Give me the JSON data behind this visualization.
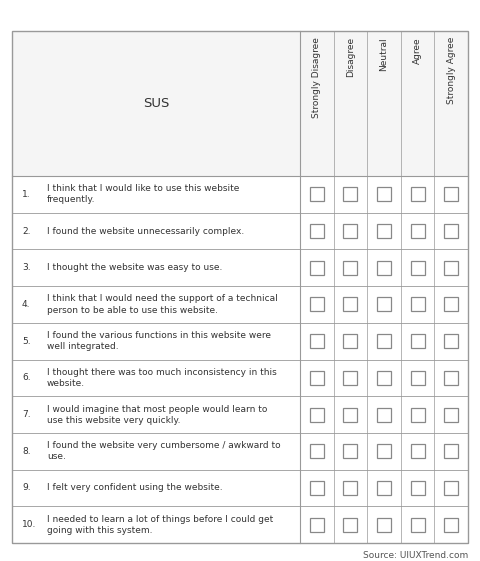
{
  "title": "SUS",
  "header_labels": [
    "Strongly Disagree",
    "Disagree",
    "Neutral",
    "Agree",
    "Strongly Agree"
  ],
  "questions": [
    {
      "num": "1.",
      "text": "I think that I would like to use this website\nfrequently."
    },
    {
      "num": "2.",
      "text": "I found the website unnecessarily complex."
    },
    {
      "num": "3.",
      "text": "I thought the website was easy to use."
    },
    {
      "num": "4.",
      "text": "I think that I would need the support of a technical\nperson to be able to use this website."
    },
    {
      "num": "5.",
      "text": "I found the various functions in this website were\nwell integrated."
    },
    {
      "num": "6.",
      "text": "I thought there was too much inconsistency in this\nwebsite."
    },
    {
      "num": "7.",
      "text": "I would imagine that most people would learn to\nuse this website very quickly."
    },
    {
      "num": "8.",
      "text": "I found the website very cumbersome / awkward to\nuse."
    },
    {
      "num": "9.",
      "text": "I felt very confident using the website."
    },
    {
      "num": "10.",
      "text": "I needed to learn a lot of things before I could get\ngoing with this system."
    }
  ],
  "source_text": "Source: UIUXTrend.com",
  "bg_color": "#ffffff",
  "border_color": "#999999",
  "text_color": "#333333",
  "checkbox_border_color": "#888888",
  "font_size": 6.5,
  "header_font_size": 6.5,
  "title_font_size": 9.5,
  "source_font_size": 6.5
}
